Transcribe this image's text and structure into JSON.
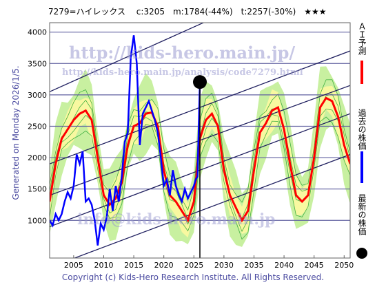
{
  "header": {
    "title": "7279=ハイレックス　 c:3205　m:1784(-44%)　t:2257(-30%)　★★★"
  },
  "side_note": "Generated on Monday 2026/1/5.",
  "footer": "Copyright (c) Kids-Hero Research Institute. All Rights Reserved.",
  "watermarks": {
    "site": "http://kids-hero.main.jp/",
    "analysis_url": "http://kids-hero.main.jp/analysis/code7279.html",
    "mail": "info@kids-hero.main.jp"
  },
  "legend": {
    "ai_forecast": "ＡＩ予測",
    "past_price": "過去の株価",
    "latest_price": "最新の株価"
  },
  "colors": {
    "ai_forecast": "#ff0000",
    "past_price": "#0000ff",
    "band_outer": "#c8f0a0",
    "band_inner": "#f8f8a0",
    "trend_lines": "#202060",
    "grid": "#6060a0"
  },
  "chart_data": {
    "type": "line",
    "xlim": [
      2001,
      2051
    ],
    "ylim": [
      400,
      4150
    ],
    "x_ticks": [
      2005,
      2010,
      2015,
      2020,
      2025,
      2030,
      2035,
      2040,
      2045,
      2050
    ],
    "y_ticks": [
      1000,
      1500,
      2000,
      2500,
      3000,
      3500,
      4000
    ],
    "grid_y": [
      1000,
      1500,
      2000,
      2500,
      3000,
      3500,
      4000
    ],
    "current": {
      "x": 2026.0,
      "y": 3205
    },
    "series": [
      {
        "name": "ＡＩ予測",
        "x": [
          2001,
          2002,
          2003,
          2004,
          2005,
          2006,
          2007,
          2008,
          2009,
          2010,
          2011,
          2012,
          2013,
          2014,
          2015,
          2016,
          2017,
          2018,
          2019,
          2020,
          2021,
          2022,
          2023,
          2024,
          2025,
          2026,
          2027,
          2028,
          2029,
          2030,
          2031,
          2032,
          2033,
          2034,
          2035,
          2036,
          2037,
          2038,
          2039,
          2040,
          2041,
          2042,
          2043,
          2044,
          2045,
          2046,
          2047,
          2048,
          2049,
          2050,
          2051
        ],
        "values": [
          1300,
          1900,
          2300,
          2450,
          2600,
          2700,
          2750,
          2600,
          2000,
          1400,
          1250,
          1350,
          1600,
          2200,
          2500,
          2550,
          2700,
          2720,
          2500,
          1800,
          1400,
          1300,
          1150,
          1000,
          1300,
          2300,
          2600,
          2700,
          2500,
          1800,
          1400,
          1200,
          1000,
          1150,
          1800,
          2400,
          2550,
          2750,
          2800,
          2450,
          1900,
          1400,
          1300,
          1400,
          2000,
          2800,
          2950,
          2900,
          2650,
          2200,
          1900
        ]
      },
      {
        "name": "過去の株価",
        "x": [
          2001,
          2001.5,
          2002,
          2002.5,
          2003,
          2003.5,
          2004,
          2004.5,
          2005,
          2005.5,
          2006,
          2006.5,
          2007,
          2007.5,
          2008,
          2008.5,
          2009,
          2009.5,
          2010,
          2010.5,
          2011,
          2011.5,
          2012,
          2012.5,
          2013,
          2013.5,
          2014,
          2014.5,
          2015,
          2015.5,
          2016,
          2016.5,
          2017,
          2017.5,
          2018,
          2018.5,
          2019,
          2019.5,
          2020,
          2020.5,
          2021,
          2021.5,
          2022,
          2022.5,
          2023,
          2023.5,
          2024,
          2024.5,
          2025,
          2025.3,
          2025.6,
          2026.0
        ],
        "values": [
          1000,
          920,
          1100,
          1000,
          1100,
          1300,
          1450,
          1350,
          1550,
          2050,
          1900,
          2100,
          1300,
          1350,
          1250,
          1000,
          600,
          950,
          850,
          1050,
          1500,
          1150,
          1550,
          1300,
          1700,
          2250,
          2400,
          3600,
          3950,
          3500,
          2200,
          2700,
          2800,
          2900,
          2750,
          2600,
          2400,
          2000,
          1550,
          1650,
          1400,
          1800,
          1550,
          1400,
          1300,
          1500,
          1350,
          1450,
          1550,
          1650,
          1700,
          3205
        ]
      }
    ]
  }
}
